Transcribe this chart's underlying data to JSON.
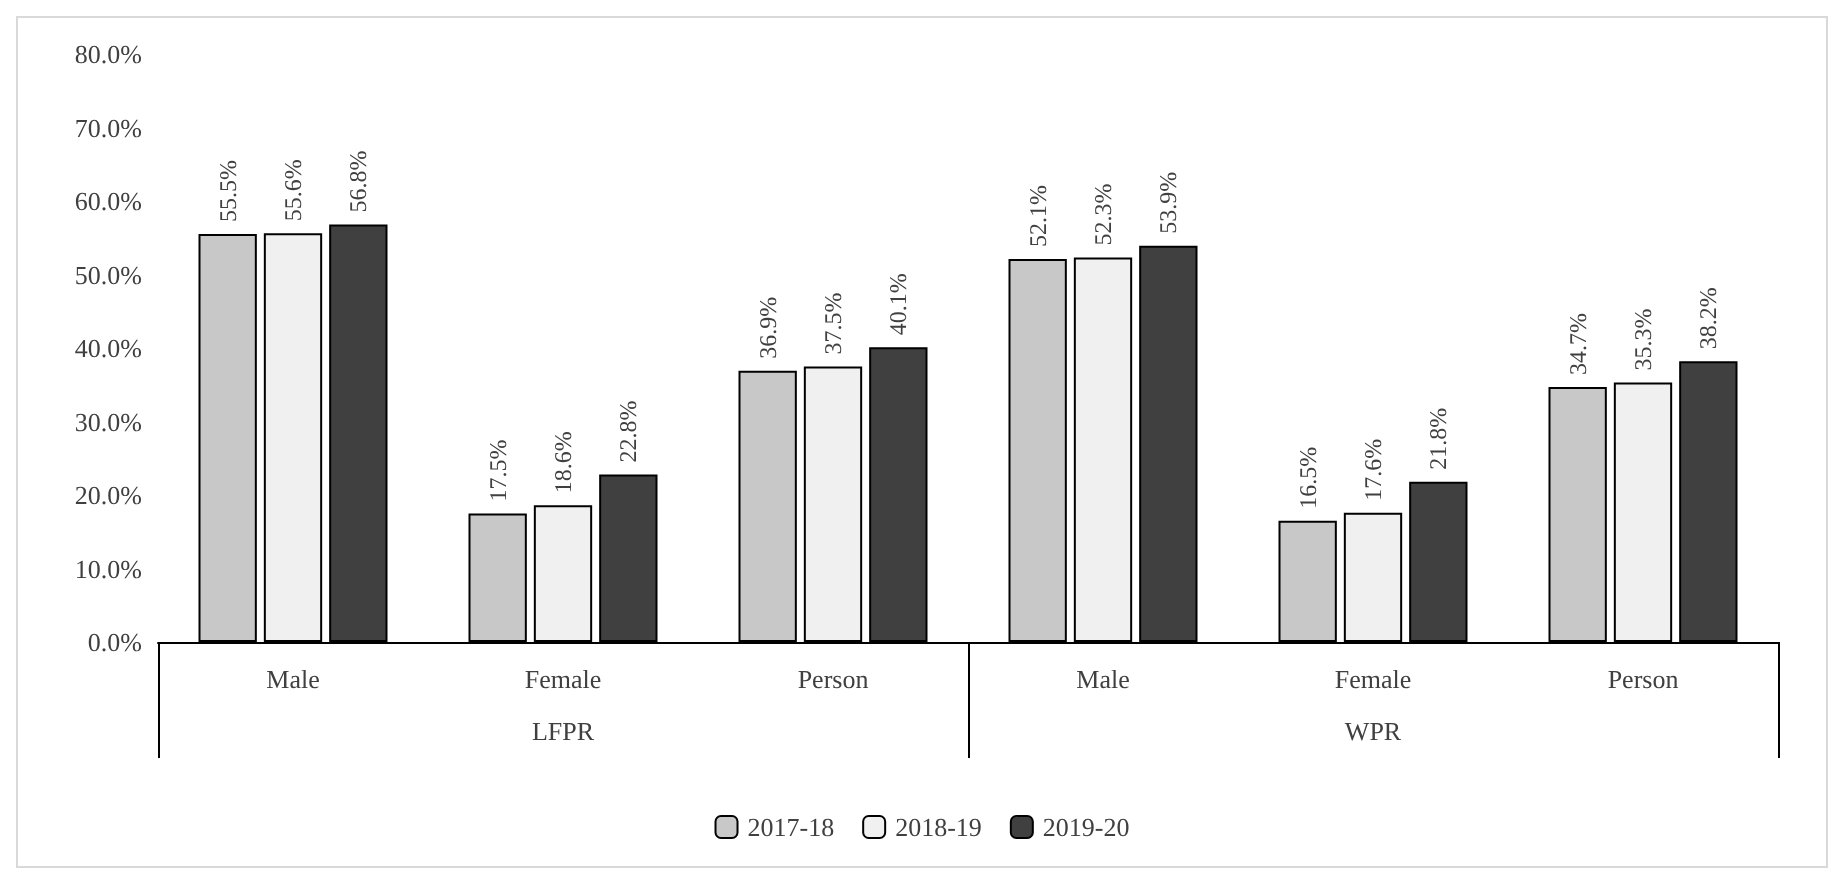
{
  "chart_data": {
    "type": "bar",
    "categories": [
      "Male",
      "Female",
      "Person",
      "Male",
      "Female",
      "Person"
    ],
    "annotations": [
      "LFPR",
      "WPR"
    ],
    "series": [
      {
        "name": "2017-18",
        "color": "#c8c8c8",
        "values": [
          55.5,
          17.5,
          36.9,
          52.1,
          16.5,
          34.7
        ],
        "value_labels": [
          "55.5%",
          "17.5%",
          "36.9%",
          "52.1%",
          "16.5%",
          "34.7%"
        ]
      },
      {
        "name": "2018-19",
        "color": "#f0f0f0",
        "values": [
          55.6,
          18.6,
          37.5,
          52.3,
          17.6,
          35.3
        ],
        "value_labels": [
          "55.6%",
          "18.6%",
          "37.5%",
          "52.3%",
          "17.6%",
          "35.3%"
        ]
      },
      {
        "name": "2019-20",
        "color": "#404040",
        "values": [
          56.8,
          22.8,
          40.1,
          53.9,
          21.8,
          38.2
        ],
        "value_labels": [
          "56.8%",
          "22.8%",
          "40.1%",
          "53.9%",
          "21.8%",
          "38.2%"
        ]
      }
    ],
    "ylim": [
      0,
      80
    ],
    "yticks": [
      {
        "value": 0,
        "label": "0.0%"
      },
      {
        "value": 10,
        "label": "10.0%"
      },
      {
        "value": 20,
        "label": "20.0%"
      },
      {
        "value": 30,
        "label": "30.0%"
      },
      {
        "value": 40,
        "label": "40.0%"
      },
      {
        "value": 50,
        "label": "50.0%"
      },
      {
        "value": 60,
        "label": "60.0%"
      },
      {
        "value": 70,
        "label": "70.0%"
      },
      {
        "value": 80,
        "label": "80.0%"
      }
    ],
    "legend": "bottom"
  }
}
